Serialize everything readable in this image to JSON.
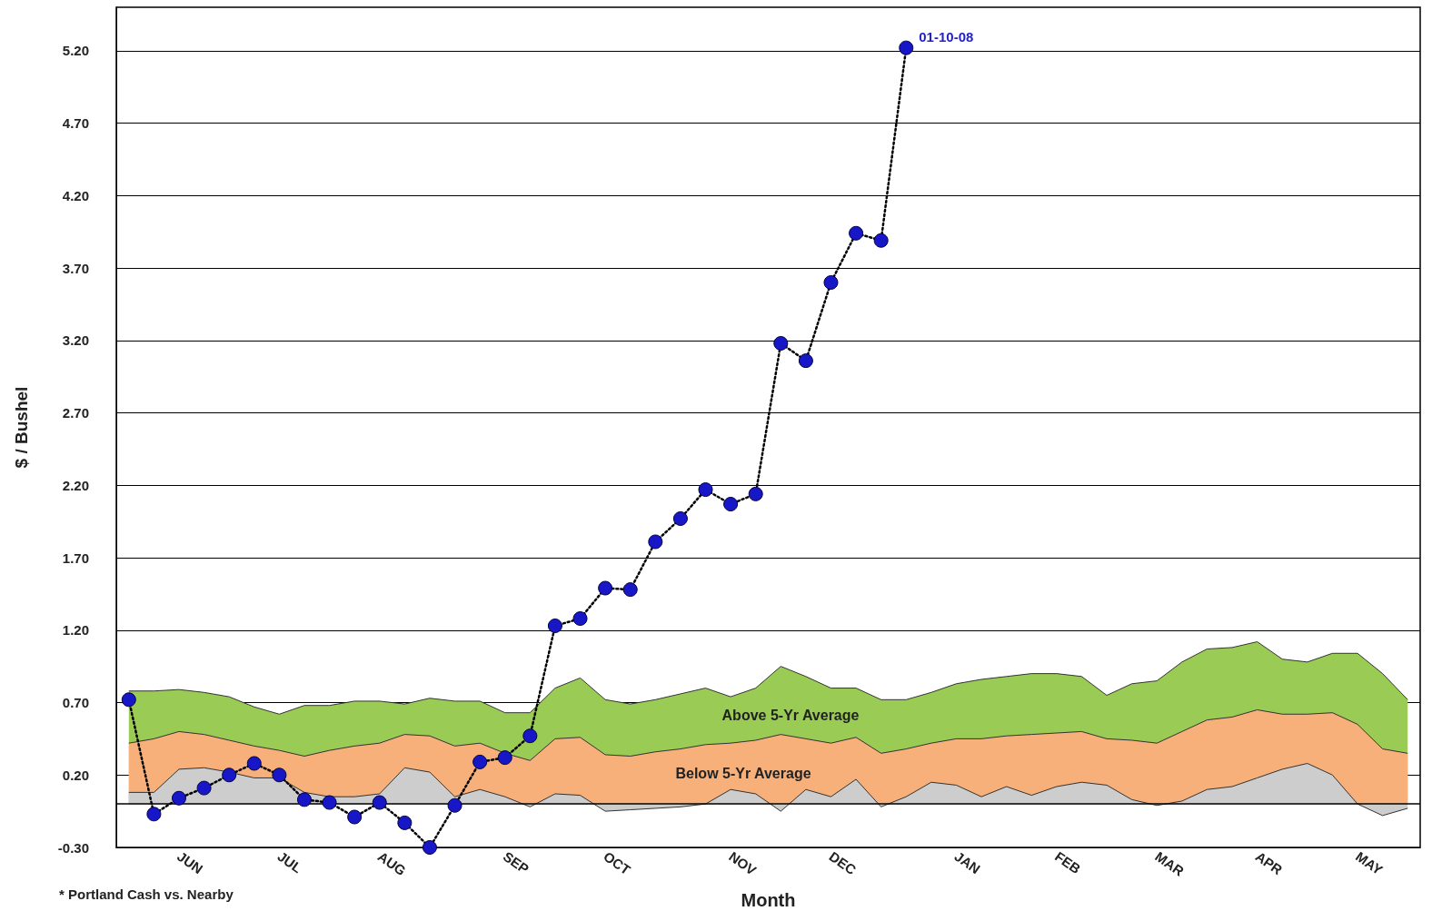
{
  "chart_data": {
    "type": "line",
    "xlabel": "Month",
    "ylabel": "$ / Bushel",
    "categories": [
      null,
      null,
      "JUN",
      null,
      null,
      null,
      "JUL",
      null,
      null,
      null,
      "AUG",
      null,
      null,
      null,
      null,
      "SEP",
      null,
      null,
      null,
      "OCT",
      null,
      null,
      null,
      null,
      "NOV",
      null,
      null,
      null,
      "DEC",
      null,
      null,
      null,
      null,
      "JAN",
      null,
      null,
      null,
      "FEB",
      null,
      null,
      null,
      "MAR",
      null,
      null,
      null,
      "APR",
      null,
      null,
      null,
      "MAY",
      null,
      null
    ],
    "series": [
      {
        "type": "area",
        "color": "#9acb55",
        "values": [
          0.78,
          0.78,
          0.79,
          0.77,
          0.74,
          0.67,
          0.62,
          0.68,
          0.68,
          0.71,
          0.71,
          0.69,
          0.73,
          0.71,
          0.71,
          0.63,
          0.63,
          0.8,
          0.87,
          0.72,
          0.69,
          0.72,
          0.76,
          0.8,
          0.74,
          0.8,
          0.95,
          0.88,
          0.8,
          0.8,
          0.72,
          0.72,
          0.77,
          0.83,
          0.86,
          0.88,
          0.9,
          0.9,
          0.88,
          0.75,
          0.83,
          0.85,
          0.98,
          1.07,
          1.08,
          1.12,
          1.0,
          0.98,
          1.04,
          1.04,
          0.9,
          0.72
        ]
      },
      {
        "type": "area",
        "color": "#f7b07a",
        "values": [
          0.42,
          0.45,
          0.5,
          0.48,
          0.44,
          0.4,
          0.37,
          0.33,
          0.37,
          0.4,
          0.42,
          0.48,
          0.47,
          0.4,
          0.42,
          0.35,
          0.3,
          0.45,
          0.46,
          0.34,
          0.33,
          0.36,
          0.38,
          0.41,
          0.42,
          0.44,
          0.48,
          0.45,
          0.42,
          0.46,
          0.35,
          0.38,
          0.42,
          0.45,
          0.45,
          0.47,
          0.48,
          0.49,
          0.5,
          0.45,
          0.44,
          0.42,
          0.5,
          0.58,
          0.6,
          0.65,
          0.62,
          0.62,
          0.63,
          0.55,
          0.38,
          0.35
        ]
      },
      {
        "type": "area",
        "color": "#cdcdcd",
        "values": [
          0.08,
          0.08,
          0.24,
          0.25,
          0.22,
          0.18,
          0.18,
          0.08,
          0.05,
          0.05,
          0.07,
          0.25,
          0.22,
          0.05,
          0.1,
          0.05,
          -0.02,
          0.07,
          0.06,
          -0.05,
          -0.04,
          -0.03,
          -0.02,
          0.0,
          0.1,
          0.07,
          -0.05,
          0.1,
          0.05,
          0.17,
          -0.02,
          0.05,
          0.15,
          0.13,
          0.05,
          0.12,
          0.06,
          0.12,
          0.15,
          0.13,
          0.03,
          -0.01,
          0.02,
          0.1,
          0.12,
          0.18,
          0.24,
          0.28,
          0.2,
          0.0,
          -0.08,
          -0.03
        ]
      },
      {
        "color": "#1717c8",
        "marker": "circle",
        "line_style": "dotted",
        "values": [
          0.72,
          -0.07,
          0.04,
          0.11,
          0.2,
          0.28,
          0.2,
          0.03,
          0.01,
          -0.09,
          0.01,
          -0.13,
          -0.3,
          -0.01,
          0.29,
          0.32,
          0.47,
          1.23,
          1.28,
          1.49,
          1.48,
          1.81,
          1.97,
          2.17,
          2.07,
          2.14,
          3.18,
          3.06,
          3.6,
          3.94,
          3.89,
          5.22,
          null,
          null,
          null,
          null,
          null,
          null,
          null,
          null,
          null,
          null,
          null,
          null,
          null,
          null,
          null,
          null,
          null,
          null,
          null,
          null
        ]
      }
    ],
    "ylim": [
      -0.3,
      5.5
    ],
    "yticks": [
      {
        "value": -0.3,
        "label": "-0.30"
      },
      {
        "value": 0.2,
        "label": "0.20"
      },
      {
        "value": 0.7,
        "label": "0.70"
      },
      {
        "value": 1.2,
        "label": "1.20"
      },
      {
        "value": 1.7,
        "label": "1.70"
      },
      {
        "value": 2.2,
        "label": "2.20"
      },
      {
        "value": 2.7,
        "label": "2.70"
      },
      {
        "value": 3.2,
        "label": "3.20"
      },
      {
        "value": 3.7,
        "label": "3.70"
      },
      {
        "value": 4.2,
        "label": "4.20"
      },
      {
        "value": 4.7,
        "label": "4.70"
      },
      {
        "value": 5.2,
        "label": "5.20"
      }
    ],
    "grid": "y",
    "ref_lines": [
      {
        "axis": "y",
        "value": 0,
        "color": "#000000"
      }
    ],
    "annotations": [
      "01-10-08",
      "Above 5-Yr Average",
      "Below 5-Yr Average",
      "* Portland Cash vs. Nearby"
    ]
  }
}
